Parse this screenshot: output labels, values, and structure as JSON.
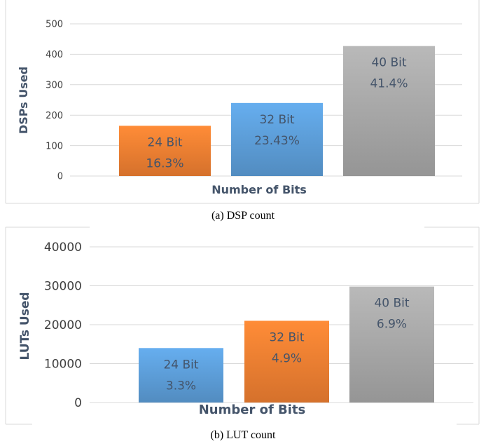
{
  "chart_data": [
    {
      "type": "bar",
      "categories": [
        "24 Bit",
        "32 Bit",
        "40 Bit"
      ],
      "values": [
        165,
        240,
        427
      ],
      "bar_labels": [
        [
          "24 Bit",
          "16.3%"
        ],
        [
          "32 Bit",
          "23.43%"
        ],
        [
          "40 Bit",
          "41.4%"
        ]
      ],
      "colors": [
        "#ed7d31",
        "#5b9bd5",
        "#a5a5a5"
      ],
      "xlabel": "Number of Bits",
      "ylabel": "DSPs Used",
      "ylim": [
        0,
        500
      ],
      "yticks": [
        "0",
        "100",
        "200",
        "300",
        "400",
        "500"
      ],
      "grid": true,
      "caption": "(a)  DSP count"
    },
    {
      "type": "bar",
      "categories": [
        "24 Bit",
        "32 Bit",
        "40 Bit"
      ],
      "values": [
        14000,
        21000,
        29800
      ],
      "bar_labels": [
        [
          "24 Bit",
          "3.3%"
        ],
        [
          "32 Bit",
          "4.9%"
        ],
        [
          "40 Bit",
          "6.9%"
        ]
      ],
      "colors": [
        "#5b9bd5",
        "#ed7d31",
        "#a5a5a5"
      ],
      "xlabel": "Number of Bits",
      "ylabel": "LUTs Used",
      "ylim": [
        0,
        40000
      ],
      "yticks": [
        "0",
        "10000",
        "20000",
        "30000",
        "40000"
      ],
      "grid": true,
      "caption": "(b)  LUT count"
    }
  ]
}
